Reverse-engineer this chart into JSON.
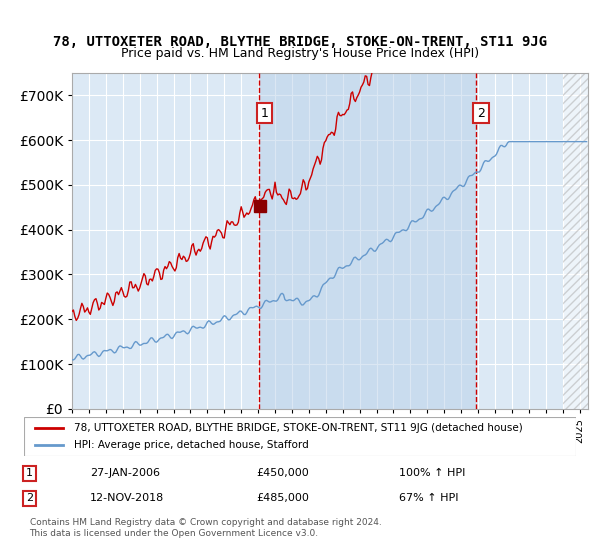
{
  "title": "78, UTTOXETER ROAD, BLYTHE BRIDGE, STOKE-ON-TRENT, ST11 9JG",
  "subtitle": "Price paid vs. HM Land Registry's House Price Index (HPI)",
  "legend_line1": "78, UTTOXETER ROAD, BLYTHE BRIDGE, STOKE-ON-TRENT, ST11 9JG (detached house)",
  "legend_line2": "HPI: Average price, detached house, Stafford",
  "marker1_date": "27-JAN-2006",
  "marker1_price": 450000,
  "marker1_pct": "100% ↑ HPI",
  "marker2_date": "12-NOV-2018",
  "marker2_price": 485000,
  "marker2_pct": "67% ↑ HPI",
  "copyright": "Contains HM Land Registry data © Crown copyright and database right 2024.\nThis data is licensed under the Open Government Licence v3.0.",
  "background_color": "#dce9f5",
  "plot_bg_color": "#dce9f5",
  "hatch_color": "#c0c0c0",
  "red_line_color": "#cc0000",
  "blue_line_color": "#6699cc",
  "marker_color": "#8b0000",
  "vline_color": "#cc0000",
  "ylim": [
    0,
    750000
  ],
  "xlim_start": 1995.0,
  "xlim_end": 2025.5
}
